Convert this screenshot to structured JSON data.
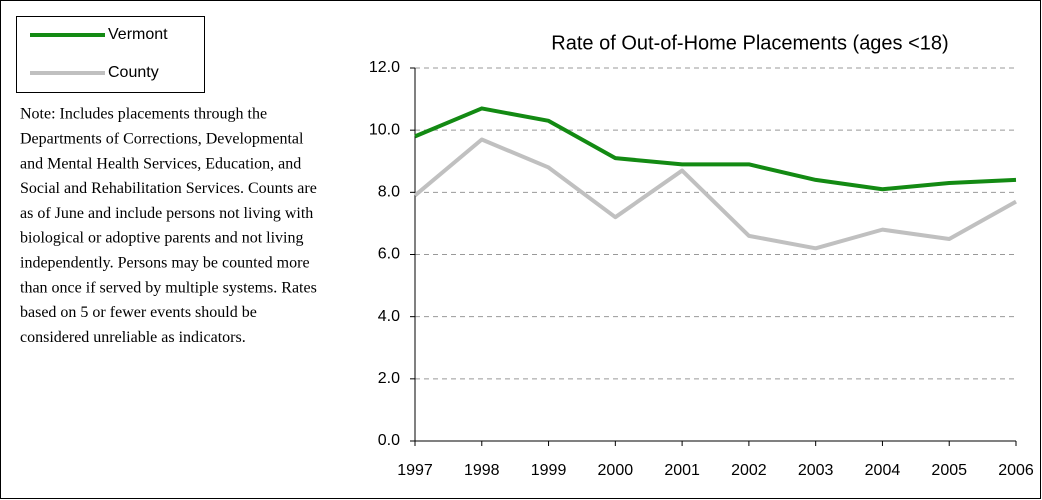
{
  "chart_data": {
    "type": "line",
    "title": "Rate of Out-of-Home Placements (ages <18)",
    "note": [
      "Note: Includes placements through the",
      "Departments of Corrections, Developmental",
      "and Mental Health Services, Education, and",
      "Social and Rehabilitation Services.  Counts are",
      "as of June and include persons not living with",
      "biological or adoptive parents and not living",
      "independently.  Persons may be counted more",
      "than once if served by multiple systems.  Rates",
      "based on 5 or fewer events should be",
      "considered unreliable as indicators."
    ],
    "categories": [
      "1997",
      "1998",
      "1999",
      "2000",
      "2001",
      "2002",
      "2003",
      "2004",
      "2005",
      "2006"
    ],
    "series": [
      {
        "name": "Vermont",
        "color": "#138a13",
        "values": [
          9.8,
          10.7,
          10.3,
          9.1,
          8.9,
          8.9,
          8.4,
          8.1,
          8.3,
          8.4
        ]
      },
      {
        "name": "County",
        "color": "#c0c0c0",
        "values": [
          7.9,
          9.7,
          8.8,
          7.2,
          8.7,
          6.6,
          6.2,
          6.8,
          6.5,
          7.7
        ]
      }
    ],
    "ylim": [
      0,
      12
    ],
    "yticks": [
      {
        "value": 0,
        "label": "0.0"
      },
      {
        "value": 2,
        "label": "2.0"
      },
      {
        "value": 4,
        "label": "4.0"
      },
      {
        "value": 6,
        "label": "6.0"
      },
      {
        "value": 8,
        "label": "8.0"
      },
      {
        "value": 10,
        "label": "10.0"
      },
      {
        "value": 12,
        "label": "12.0"
      }
    ],
    "grid": true,
    "legend": "top-left"
  }
}
